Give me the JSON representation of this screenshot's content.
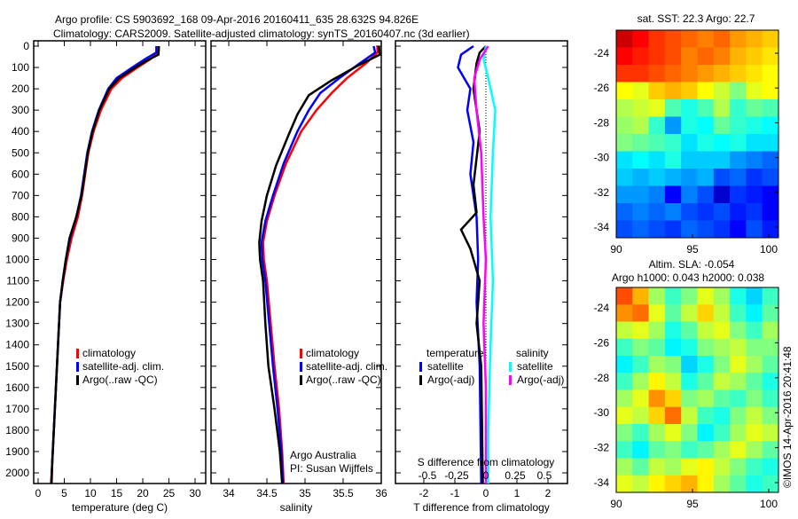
{
  "title_line1": "Argo profile: CS 5903692_168 09-Apr-2016 20160411_635 28.632S 94.826E",
  "title_line2": "Climatology: CARS2009. Satellite-adjusted climatology: synTS_20160407.nc (3d earlier)",
  "copyright": "©IMOS 14-Apr-2016 20:41:48",
  "chart_data": [
    {
      "type": "line",
      "name": "temperature-profile",
      "xlabel": "temperature (deg C)",
      "xlim": [
        -1,
        31
      ],
      "xticks": [
        "0",
        "5",
        "10",
        "15",
        "20",
        "25",
        "30"
      ],
      "ylim": [
        0,
        2070
      ],
      "yticks": [
        "0",
        "100",
        "200",
        "300",
        "400",
        "500",
        "600",
        "700",
        "800",
        "900",
        "1000",
        "1100",
        "1200",
        "1300",
        "1400",
        "1500",
        "1600",
        "1700",
        "1800",
        "1900",
        "2000"
      ],
      "legend": [
        "climatology",
        "satellite-adj. clim.",
        "Argo(..raw -QC)"
      ],
      "series": [
        {
          "name": "climatology",
          "color": "#ff0000",
          "points": [
            [
              23,
              0
            ],
            [
              23,
              30
            ],
            [
              21.5,
              60
            ],
            [
              19,
              100
            ],
            [
              16,
              150
            ],
            [
              14,
              200
            ],
            [
              12,
              300
            ],
            [
              10.6,
              400
            ],
            [
              9.6,
              500
            ],
            [
              9,
              600
            ],
            [
              8.4,
              700
            ],
            [
              7.6,
              800
            ],
            [
              6.4,
              900
            ],
            [
              5.5,
              1000
            ],
            [
              4.8,
              1100
            ],
            [
              4.2,
              1200
            ],
            [
              3.8,
              1400
            ],
            [
              3.4,
              1600
            ],
            [
              3,
              1800
            ],
            [
              2.7,
              1950
            ],
            [
              2.6,
              2050
            ]
          ]
        },
        {
          "name": "satellite-adj. clim.",
          "color": "#0000ff",
          "points": [
            [
              22.6,
              0
            ],
            [
              22.6,
              30
            ],
            [
              20.5,
              60
            ],
            [
              18,
              100
            ],
            [
              15,
              150
            ],
            [
              13.4,
              200
            ],
            [
              11.6,
              300
            ],
            [
              10.3,
              400
            ],
            [
              9.4,
              500
            ],
            [
              8.8,
              600
            ],
            [
              8.2,
              700
            ],
            [
              7.3,
              800
            ],
            [
              6.1,
              900
            ],
            [
              5.3,
              1000
            ],
            [
              4.7,
              1100
            ],
            [
              4.2,
              1200
            ],
            [
              3.8,
              1400
            ],
            [
              3.4,
              1600
            ],
            [
              3,
              1800
            ],
            [
              2.7,
              1950
            ],
            [
              2.5,
              2050
            ]
          ]
        },
        {
          "name": "Argo(..raw -QC)",
          "color": "#000000",
          "points": [
            [
              23.1,
              0
            ],
            [
              23,
              40
            ],
            [
              21,
              65
            ],
            [
              18.6,
              100
            ],
            [
              15.5,
              150
            ],
            [
              13.6,
              200
            ],
            [
              11.7,
              300
            ],
            [
              10.4,
              400
            ],
            [
              9.5,
              500
            ],
            [
              8.9,
              600
            ],
            [
              8.3,
              700
            ],
            [
              7.3,
              800
            ],
            [
              6,
              900
            ],
            [
              5.3,
              1000
            ],
            [
              4.7,
              1100
            ],
            [
              4.2,
              1200
            ],
            [
              3.8,
              1400
            ],
            [
              3.4,
              1600
            ],
            [
              3,
              1800
            ],
            [
              2.7,
              1950
            ],
            [
              2.5,
              2050
            ]
          ]
        }
      ]
    },
    {
      "type": "line",
      "name": "salinity-profile",
      "xlabel": "salinity",
      "xlim": [
        33.85,
        36.05
      ],
      "xticks": [
        "34",
        "34.5",
        "35",
        "35.5",
        "36"
      ],
      "ylim": [
        0,
        2070
      ],
      "legend": [
        "climatology",
        "satellite-adj. clim.",
        "Argo(..raw -QC)"
      ],
      "annotation": [
        "Argo Australia",
        "PI: Susan Wijffels"
      ],
      "series": [
        {
          "name": "climatology",
          "color": "#ff0000",
          "points": [
            [
              35.95,
              0
            ],
            [
              35.95,
              30
            ],
            [
              35.8,
              80
            ],
            [
              35.55,
              150
            ],
            [
              35.35,
              220
            ],
            [
              35.15,
              300
            ],
            [
              34.95,
              400
            ],
            [
              34.75,
              550
            ],
            [
              34.6,
              700
            ],
            [
              34.5,
              820
            ],
            [
              34.45,
              920
            ],
            [
              34.46,
              1000
            ],
            [
              34.5,
              1100
            ],
            [
              34.55,
              1300
            ],
            [
              34.6,
              1500
            ],
            [
              34.66,
              1700
            ],
            [
              34.7,
              1900
            ],
            [
              34.72,
              2050
            ]
          ]
        },
        {
          "name": "satellite-adj. clim.",
          "color": "#0000ff",
          "points": [
            [
              35.9,
              0
            ],
            [
              35.92,
              30
            ],
            [
              35.72,
              80
            ],
            [
              35.45,
              150
            ],
            [
              35.2,
              220
            ],
            [
              35.05,
              300
            ],
            [
              34.9,
              400
            ],
            [
              34.72,
              550
            ],
            [
              34.58,
              700
            ],
            [
              34.48,
              820
            ],
            [
              34.43,
              920
            ],
            [
              34.44,
              1000
            ],
            [
              34.48,
              1100
            ],
            [
              34.53,
              1300
            ],
            [
              34.58,
              1500
            ],
            [
              34.64,
              1700
            ],
            [
              34.69,
              1900
            ],
            [
              34.71,
              2050
            ]
          ]
        },
        {
          "name": "Argo(..raw -QC)",
          "color": "#000000",
          "points": [
            [
              35.97,
              0
            ],
            [
              35.98,
              40
            ],
            [
              35.7,
              90
            ],
            [
              35.35,
              160
            ],
            [
              35.05,
              230
            ],
            [
              34.9,
              320
            ],
            [
              34.78,
              420
            ],
            [
              34.62,
              560
            ],
            [
              34.5,
              700
            ],
            [
              34.43,
              820
            ],
            [
              34.4,
              920
            ],
            [
              34.41,
              1000
            ],
            [
              34.45,
              1100
            ],
            [
              34.48,
              1300
            ],
            [
              34.52,
              1500
            ],
            [
              34.6,
              1700
            ],
            [
              34.67,
              1900
            ],
            [
              34.7,
              2050
            ]
          ]
        }
      ]
    },
    {
      "type": "line",
      "name": "difference-profile",
      "xlabel": "T difference from climatology",
      "xlim": [
        -3,
        3
      ],
      "xticks": [
        "-2",
        "-1",
        "0",
        "1",
        "2"
      ],
      "top_axis_label": "S difference from climatology",
      "top_xticks": [
        "-0.5",
        "-0.25",
        "0",
        "0.25",
        "0.5"
      ],
      "ylim": [
        0,
        2070
      ],
      "legend": {
        "temperature_title": "temperature",
        "salinity_title": "salinity",
        "items": [
          "satellite",
          "Argo(-adj)",
          "satellite",
          "Argo(-adj)"
        ]
      },
      "series": [
        {
          "name": "temperature satellite",
          "color": "#0000ff",
          "axis": "T",
          "points": [
            [
              -0.4,
              0
            ],
            [
              -0.8,
              40
            ],
            [
              -0.9,
              100
            ],
            [
              -0.5,
              200
            ],
            [
              -0.6,
              300
            ],
            [
              -0.4,
              450
            ],
            [
              -0.5,
              600
            ],
            [
              -0.3,
              800
            ],
            [
              -0.25,
              1000
            ],
            [
              -0.3,
              1200
            ],
            [
              -0.2,
              1500
            ],
            [
              -0.15,
              2050
            ]
          ]
        },
        {
          "name": "temperature Argo(-adj)",
          "color": "#000000",
          "axis": "T",
          "points": [
            [
              0,
              0
            ],
            [
              -0.2,
              30
            ],
            [
              -0.3,
              80
            ],
            [
              -0.4,
              200
            ],
            [
              -0.2,
              400
            ],
            [
              -0.4,
              650
            ],
            [
              -0.3,
              780
            ],
            [
              -0.8,
              860
            ],
            [
              -0.5,
              950
            ],
            [
              -0.2,
              1100
            ],
            [
              -0.3,
              1300
            ],
            [
              -0.15,
              1500
            ],
            [
              -0.1,
              2050
            ]
          ]
        },
        {
          "name": "salinity satellite",
          "color": "#00ffff",
          "axis": "S",
          "points": [
            [
              0,
              0
            ],
            [
              -0.02,
              60
            ],
            [
              0.02,
              150
            ],
            [
              0.08,
              300
            ],
            [
              0.06,
              500
            ],
            [
              0.04,
              800
            ],
            [
              0.06,
              1100
            ],
            [
              0.04,
              1400
            ],
            [
              0.02,
              1800
            ],
            [
              0.02,
              2050
            ]
          ]
        },
        {
          "name": "salinity Argo(-adj)",
          "color": "#ff00ff",
          "axis": "S",
          "points": [
            [
              0.02,
              0
            ],
            [
              -0.05,
              60
            ],
            [
              -0.1,
              150
            ],
            [
              -0.08,
              300
            ],
            [
              -0.04,
              500
            ],
            [
              -0.02,
              800
            ],
            [
              0.0,
              1000
            ],
            [
              -0.02,
              1300
            ],
            [
              0,
              1600
            ],
            [
              0,
              2050
            ]
          ]
        }
      ]
    },
    {
      "type": "heatmap",
      "name": "sst-map",
      "title": "sat. SST: 22.3 Argo: 22.7",
      "xticks": [
        "90",
        "95",
        "100"
      ],
      "yticks": [
        "-24",
        "-26",
        "-28",
        "-30",
        "-32",
        "-34"
      ],
      "vlim": [
        20.5,
        24.5
      ],
      "grid": [
        [
          24.2,
          24.0,
          23.8,
          23.7,
          23.6,
          23.5,
          23.6,
          23.4,
          23.3,
          23.2
        ],
        [
          24.0,
          23.9,
          23.8,
          23.7,
          23.5,
          23.6,
          23.5,
          23.3,
          23.2,
          23.1
        ],
        [
          23.8,
          23.8,
          23.7,
          23.6,
          23.5,
          23.4,
          23.3,
          23.2,
          23.1,
          23.0
        ],
        [
          23.0,
          22.9,
          23.2,
          23.3,
          23.2,
          23.0,
          22.8,
          22.5,
          22.9,
          23.0
        ],
        [
          22.7,
          22.8,
          22.9,
          22.3,
          22.1,
          22.3,
          22.7,
          22.2,
          22.4,
          22.3
        ],
        [
          22.6,
          22.7,
          22.2,
          21.6,
          22.1,
          22.0,
          22.4,
          22.2,
          22.1,
          22.0
        ],
        [
          22.5,
          22.4,
          22.3,
          22.2,
          21.9,
          22.1,
          22.0,
          22.1,
          21.9,
          21.9
        ],
        [
          21.9,
          22.0,
          21.9,
          22.1,
          21.8,
          21.8,
          21.8,
          21.6,
          21.5,
          21.4
        ],
        [
          21.8,
          21.7,
          21.8,
          21.7,
          21.6,
          21.7,
          21.3,
          21.4,
          21.2,
          21.3
        ],
        [
          21.6,
          21.6,
          21.5,
          21.0,
          21.5,
          21.3,
          20.8,
          21.2,
          21.1,
          21.0
        ],
        [
          21.4,
          21.5,
          21.4,
          21.5,
          21.3,
          21.2,
          21.3,
          21.1,
          21.2,
          21.0
        ],
        [
          21.3,
          21.4,
          21.3,
          21.2,
          21.4,
          21.3,
          21.2,
          21.0,
          21.3,
          21.1
        ]
      ]
    },
    {
      "type": "heatmap",
      "name": "sla-map",
      "title_line1": "Altim. SLA: -0.054",
      "title_line2": "Argo h1000: 0.043 h2000: 0.038",
      "xticks": [
        "90",
        "95",
        "100"
      ],
      "yticks": [
        "-24",
        "-26",
        "-28",
        "-30",
        "-32",
        "-34"
      ],
      "vlim": [
        -0.3,
        0.3
      ],
      "grid": [
        [
          0.18,
          0.12,
          0.02,
          -0.04,
          0.0,
          0.06,
          0.02,
          -0.06,
          -0.1,
          -0.04
        ],
        [
          0.14,
          0.16,
          0.06,
          -0.02,
          0.04,
          0.1,
          0.04,
          -0.04,
          -0.08,
          -0.02
        ],
        [
          0.04,
          0.06,
          0.02,
          -0.06,
          -0.02,
          0.04,
          0.06,
          0.0,
          -0.04,
          0.02
        ],
        [
          -0.04,
          0.0,
          -0.02,
          -0.08,
          -0.06,
          0.0,
          0.02,
          0.04,
          0.0,
          0.0
        ],
        [
          -0.08,
          -0.04,
          0.02,
          0.0,
          -0.1,
          -0.06,
          0.0,
          0.06,
          0.02,
          -0.02
        ],
        [
          -0.04,
          0.02,
          0.08,
          0.04,
          -0.06,
          -0.02,
          0.04,
          0.02,
          -0.02,
          -0.06
        ],
        [
          0.02,
          0.06,
          0.14,
          0.1,
          0.0,
          0.02,
          -0.02,
          -0.04,
          0.0,
          -0.04
        ],
        [
          0.06,
          0.04,
          0.1,
          0.16,
          0.04,
          -0.04,
          -0.06,
          0.0,
          0.04,
          0.0
        ],
        [
          0.0,
          -0.04,
          0.02,
          0.06,
          0.0,
          -0.08,
          -0.04,
          0.02,
          0.06,
          0.04
        ],
        [
          -0.04,
          -0.08,
          -0.02,
          0.0,
          -0.04,
          -0.02,
          0.02,
          0.06,
          0.02,
          -0.02
        ],
        [
          0.02,
          -0.02,
          0.04,
          0.02,
          0.06,
          0.08,
          0.04,
          0.0,
          -0.04,
          -0.06
        ],
        [
          0.06,
          0.04,
          0.08,
          0.1,
          0.12,
          0.08,
          0.02,
          -0.02,
          -0.06,
          -0.04
        ]
      ]
    }
  ]
}
